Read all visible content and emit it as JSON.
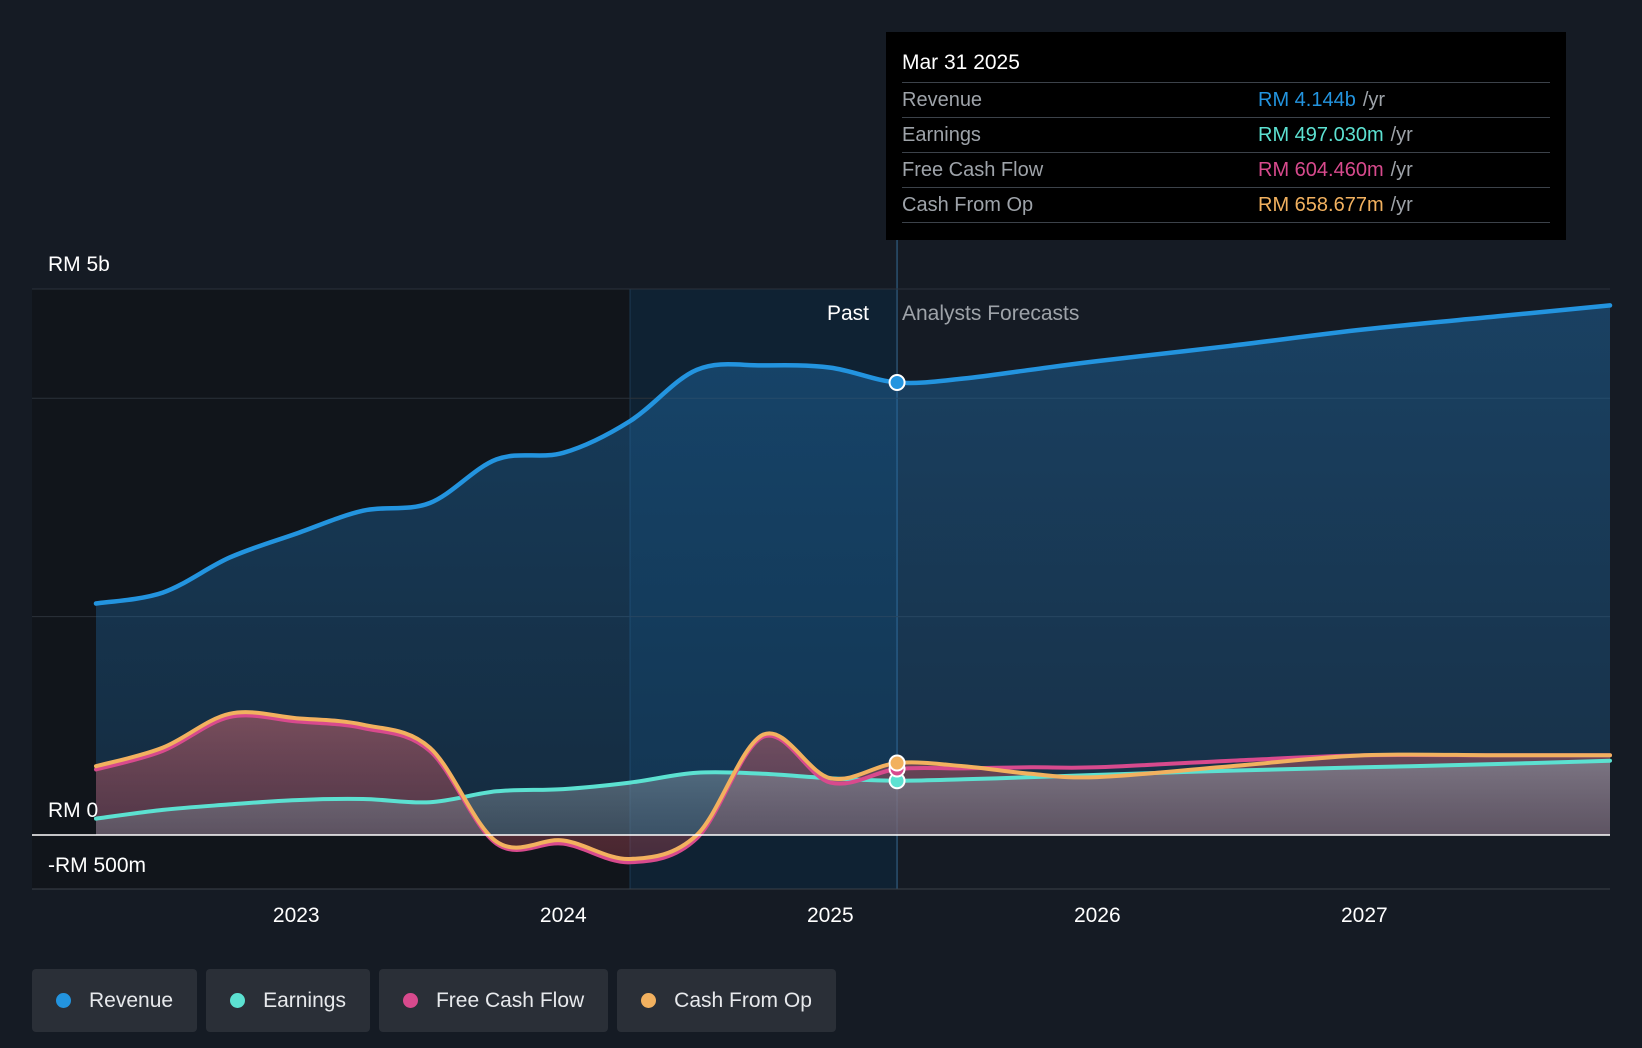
{
  "tooltip": {
    "date": "Mar 31 2025",
    "rows": [
      {
        "label": "Revenue",
        "value": "RM 4.144b",
        "unit": "/yr",
        "color": "#2394df"
      },
      {
        "label": "Earnings",
        "value": "RM 497.030m",
        "unit": "/yr",
        "color": "#5ce1d1"
      },
      {
        "label": "Free Cash Flow",
        "value": "RM 604.460m",
        "unit": "/yr",
        "color": "#d84a8d"
      },
      {
        "label": "Cash From Op",
        "value": "RM 658.677m",
        "unit": "/yr",
        "color": "#f2b15f"
      }
    ]
  },
  "legend": [
    {
      "label": "Revenue",
      "color": "#2394df"
    },
    {
      "label": "Earnings",
      "color": "#5ce1d1"
    },
    {
      "label": "Free Cash Flow",
      "color": "#d84a8d"
    },
    {
      "label": "Cash From Op",
      "color": "#f2b15f"
    }
  ],
  "chart_data": {
    "type": "line",
    "title": "",
    "y_top_label": "RM 5b",
    "y_zero_label": "RM 0",
    "y_bottom_label": "-RM 500m",
    "ylim": [
      -500,
      5000
    ],
    "xlim": [
      2022.25,
      2027.92
    ],
    "past_label": "Past",
    "forecast_label": "Analysts Forecasts",
    "past_start": 2024.25,
    "forecast_start": 2025.25,
    "x_ticks": [
      {
        "value": 2023,
        "label": "2023"
      },
      {
        "value": 2024,
        "label": "2024"
      },
      {
        "value": 2025,
        "label": "2025"
      },
      {
        "value": 2026,
        "label": "2026"
      },
      {
        "value": 2027,
        "label": "2027"
      }
    ],
    "series": [
      {
        "name": "Revenue",
        "color": "#2394df",
        "points": [
          [
            2022.25,
            2120
          ],
          [
            2022.5,
            2220
          ],
          [
            2022.75,
            2540
          ],
          [
            2023.0,
            2760
          ],
          [
            2023.25,
            2970
          ],
          [
            2023.5,
            3040
          ],
          [
            2023.75,
            3440
          ],
          [
            2024.0,
            3500
          ],
          [
            2024.25,
            3790
          ],
          [
            2024.5,
            4260
          ],
          [
            2024.75,
            4300
          ],
          [
            2025.0,
            4280
          ],
          [
            2025.25,
            4144
          ],
          [
            2025.5,
            4180
          ],
          [
            2025.75,
            4260
          ],
          [
            2026.0,
            4340
          ],
          [
            2026.5,
            4480
          ],
          [
            2027.0,
            4630
          ],
          [
            2027.5,
            4750
          ],
          [
            2027.92,
            4850
          ]
        ]
      },
      {
        "name": "Earnings",
        "color": "#5ce1d1",
        "points": [
          [
            2022.25,
            150
          ],
          [
            2022.5,
            230
          ],
          [
            2022.75,
            280
          ],
          [
            2023.0,
            320
          ],
          [
            2023.25,
            330
          ],
          [
            2023.5,
            300
          ],
          [
            2023.75,
            400
          ],
          [
            2024.0,
            420
          ],
          [
            2024.25,
            480
          ],
          [
            2024.5,
            570
          ],
          [
            2024.75,
            560
          ],
          [
            2025.0,
            520
          ],
          [
            2025.25,
            497
          ],
          [
            2025.5,
            510
          ],
          [
            2025.75,
            530
          ],
          [
            2026.0,
            550
          ],
          [
            2026.5,
            590
          ],
          [
            2027.0,
            620
          ],
          [
            2027.5,
            650
          ],
          [
            2027.92,
            680
          ]
        ]
      },
      {
        "name": "Free Cash Flow",
        "color": "#d84a8d",
        "points": [
          [
            2022.25,
            600
          ],
          [
            2022.5,
            770
          ],
          [
            2022.75,
            1080
          ],
          [
            2023.0,
            1040
          ],
          [
            2023.25,
            980
          ],
          [
            2023.5,
            770
          ],
          [
            2023.75,
            -80
          ],
          [
            2024.0,
            -80
          ],
          [
            2024.25,
            -250
          ],
          [
            2024.5,
            -30
          ],
          [
            2024.75,
            900
          ],
          [
            2025.0,
            480
          ],
          [
            2025.25,
            604
          ],
          [
            2025.5,
            610
          ],
          [
            2025.75,
            620
          ],
          [
            2026.0,
            620
          ],
          [
            2026.5,
            680
          ],
          [
            2027.0,
            730
          ],
          [
            2027.5,
            730
          ],
          [
            2027.92,
            730
          ]
        ]
      },
      {
        "name": "Cash From Op",
        "color": "#f2b15f",
        "points": [
          [
            2022.25,
            630
          ],
          [
            2022.5,
            800
          ],
          [
            2022.75,
            1110
          ],
          [
            2023.0,
            1070
          ],
          [
            2023.25,
            1010
          ],
          [
            2023.5,
            800
          ],
          [
            2023.75,
            -60
          ],
          [
            2024.0,
            -50
          ],
          [
            2024.25,
            -220
          ],
          [
            2024.5,
            0
          ],
          [
            2024.75,
            920
          ],
          [
            2025.0,
            520
          ],
          [
            2025.25,
            659
          ],
          [
            2025.5,
            630
          ],
          [
            2025.75,
            560
          ],
          [
            2026.0,
            530
          ],
          [
            2026.5,
            630
          ],
          [
            2027.0,
            730
          ],
          [
            2027.5,
            730
          ],
          [
            2027.92,
            730
          ]
        ]
      }
    ],
    "highlight_x": 2025.25
  }
}
